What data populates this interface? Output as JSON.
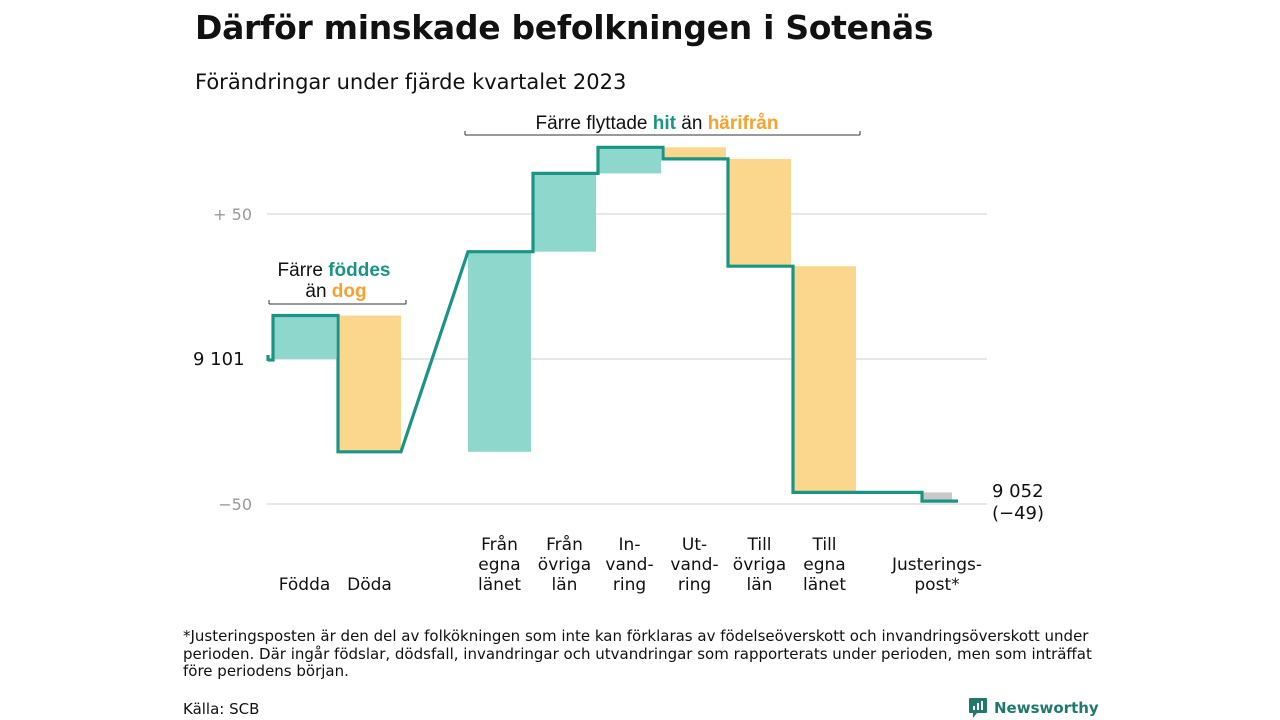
{
  "title": "Därför minskade befolkningen i Sotenäs",
  "subtitle": "Förändringar under fjärde kvartalet 2023",
  "colors": {
    "teal_line": "#1a9585",
    "teal_fill": "#8dd7cc",
    "orange_fill": "#fbd68d",
    "orange_text": "#f5a22e",
    "teal_text": "#1a9585",
    "gray_fill": "#c9c9c9",
    "grid": "#dddddd"
  },
  "chart_data": {
    "type": "waterfall",
    "start": {
      "value": 9101,
      "label": "9 101"
    },
    "end": {
      "value": 9052,
      "label": "9 052",
      "change_label": "(−49)"
    },
    "ylim": [
      -52,
      84
    ],
    "y_ticks": [
      {
        "value": 50,
        "label": "+  50"
      },
      {
        "value": -50,
        "label": "−50"
      }
    ],
    "steps": [
      {
        "key": "fodda",
        "label": [
          "Födda"
        ],
        "value": 15,
        "kind": "in"
      },
      {
        "key": "doda",
        "label": [
          "Döda"
        ],
        "value": -47,
        "kind": "out"
      },
      {
        "key": "fran_egna",
        "label": [
          "Från",
          "egna",
          "länet"
        ],
        "value": 69,
        "kind": "in"
      },
      {
        "key": "fran_ovriga",
        "label": [
          "Från",
          "övriga",
          "län"
        ],
        "value": 27,
        "kind": "in"
      },
      {
        "key": "invandring",
        "label": [
          "In-",
          "vand-",
          "ring"
        ],
        "value": 9,
        "kind": "in"
      },
      {
        "key": "utvandring",
        "label": [
          "Ut-",
          "vand-",
          "ring"
        ],
        "value": -4,
        "kind": "out"
      },
      {
        "key": "till_ovriga",
        "label": [
          "Till",
          "övriga",
          "län"
        ],
        "value": -37,
        "kind": "out"
      },
      {
        "key": "till_egna",
        "label": [
          "Till",
          "egna",
          "länet"
        ],
        "value": -78,
        "kind": "out"
      },
      {
        "key": "justering",
        "label": [
          "Justerings-",
          "post*"
        ],
        "value": -3,
        "kind": "adjust"
      }
    ],
    "annotations": {
      "births": {
        "line1_prefix": "Färre",
        "line1_highlight": "föddes",
        "line2_prefix": "än",
        "line2_highlight": "dog"
      },
      "migration": {
        "prefix": "Färre flyttade",
        "highlight1": "hit",
        "middle": "än",
        "highlight2": "härifrån"
      }
    }
  },
  "footnote": "*Justeringsposten är den del av folkökningen som inte kan förklaras av födelseöverskott och invandringsöverskott under perioden. Där ingår födslar, dödsfall, invandringar och utvandringar som rapporterats under perioden, men som inträffat före periodens början.",
  "source": "Källa: SCB",
  "brand": {
    "name": "Newsworthy",
    "icon": "newsworthy-logo-icon"
  }
}
